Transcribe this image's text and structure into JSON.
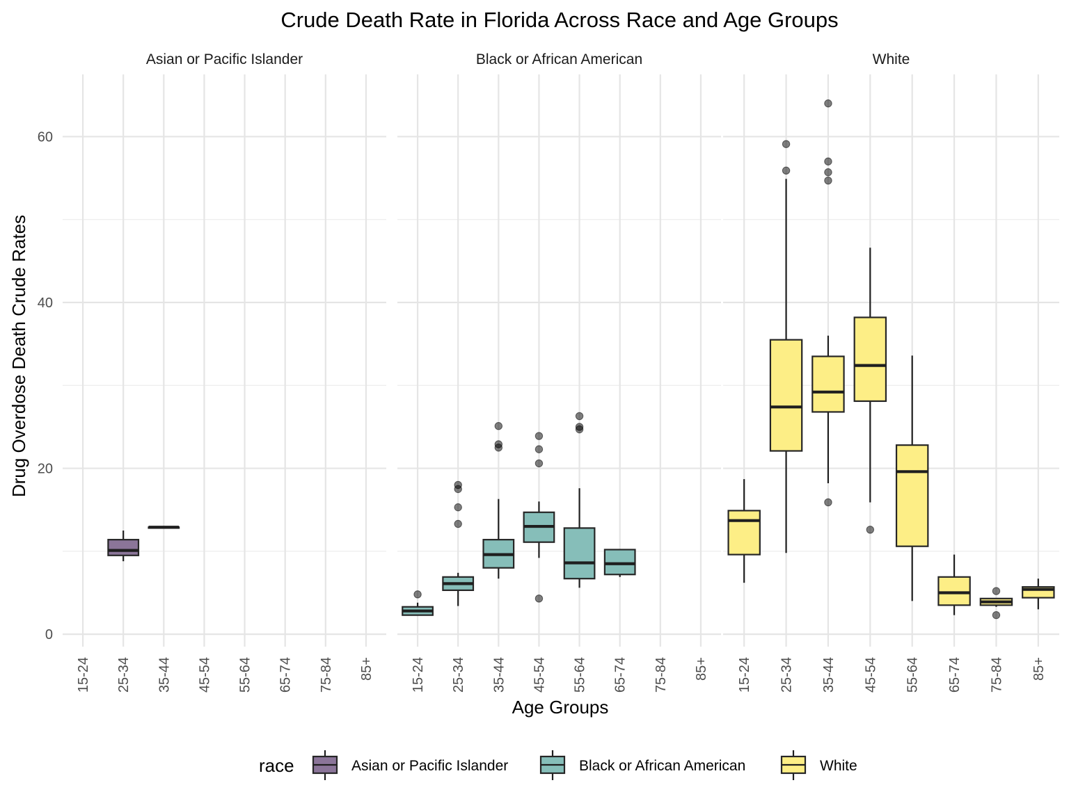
{
  "chart_data": {
    "type": "boxplot",
    "title": "Crude Death Rate in Florida Across Race and Age Groups",
    "xlabel": "Age Groups",
    "ylabel": "Drug Overdose Death Crude Rates",
    "ylim": [
      -1.5,
      67.5
    ],
    "yticks": [
      0,
      20,
      40,
      60
    ],
    "categories": [
      "15-24",
      "25-34",
      "35-44",
      "45-54",
      "55-64",
      "65-74",
      "75-84",
      "85+"
    ],
    "legend": {
      "title": "race",
      "position": "bottom",
      "items": [
        "Asian or Pacific Islander",
        "Black or African American",
        "White"
      ]
    },
    "colors": {
      "Asian or Pacific Islander": "#8b7599",
      "Black or African American": "#86beb9",
      "White": "#fdee86"
    },
    "panels": [
      {
        "name": "Asian or Pacific Islander",
        "boxes": [
          {
            "category": "25-34",
            "whisker_low": 8.8,
            "q1": 9.5,
            "median": 10.1,
            "q3": 11.4,
            "whisker_high": 12.5,
            "outliers": []
          },
          {
            "category": "35-44",
            "whisker_low": 12.8,
            "q1": 12.8,
            "median": 12.9,
            "q3": 12.9,
            "whisker_high": 12.9,
            "outliers": []
          }
        ]
      },
      {
        "name": "Black or African American",
        "boxes": [
          {
            "category": "15-24",
            "whisker_low": 2.3,
            "q1": 2.3,
            "median": 2.8,
            "q3": 3.3,
            "whisker_high": 3.8,
            "outliers": [
              4.8
            ]
          },
          {
            "category": "25-34",
            "whisker_low": 3.4,
            "q1": 5.3,
            "median": 6.1,
            "q3": 6.9,
            "whisker_high": 7.4,
            "outliers": [
              13.3,
              15.3,
              17.5,
              18.0
            ]
          },
          {
            "category": "35-44",
            "whisker_low": 6.7,
            "q1": 8.0,
            "median": 9.6,
            "q3": 11.4,
            "whisker_high": 16.3,
            "outliers": [
              22.5,
              22.9,
              25.1
            ]
          },
          {
            "category": "45-54",
            "whisker_low": 9.2,
            "q1": 11.1,
            "median": 13.0,
            "q3": 14.7,
            "whisker_high": 16.0,
            "outliers": [
              4.3,
              20.6,
              22.3,
              23.9
            ]
          },
          {
            "category": "55-64",
            "whisker_low": 5.6,
            "q1": 6.7,
            "median": 8.6,
            "q3": 12.8,
            "whisker_high": 17.6,
            "outliers": [
              24.7,
              25.0,
              26.3
            ]
          },
          {
            "category": "65-74",
            "whisker_low": 6.9,
            "q1": 7.2,
            "median": 8.5,
            "q3": 10.2,
            "whisker_high": 10.2,
            "outliers": []
          }
        ]
      },
      {
        "name": "White",
        "boxes": [
          {
            "category": "15-24",
            "whisker_low": 6.2,
            "q1": 9.6,
            "median": 13.7,
            "q3": 14.9,
            "whisker_high": 18.7,
            "outliers": []
          },
          {
            "category": "25-34",
            "whisker_low": 9.8,
            "q1": 22.1,
            "median": 27.4,
            "q3": 35.5,
            "whisker_high": 54.9,
            "outliers": [
              55.9,
              59.1
            ]
          },
          {
            "category": "35-44",
            "whisker_low": 18.2,
            "q1": 26.8,
            "median": 29.2,
            "q3": 33.5,
            "whisker_high": 36.0,
            "outliers": [
              15.9,
              54.7,
              55.7,
              57.0,
              64.0
            ]
          },
          {
            "category": "45-54",
            "whisker_low": 15.9,
            "q1": 28.1,
            "median": 32.4,
            "q3": 38.2,
            "whisker_high": 46.6,
            "outliers": [
              12.6
            ]
          },
          {
            "category": "55-64",
            "whisker_low": 4.0,
            "q1": 10.6,
            "median": 19.6,
            "q3": 22.8,
            "whisker_high": 33.6,
            "outliers": []
          },
          {
            "category": "65-74",
            "whisker_low": 2.3,
            "q1": 3.5,
            "median": 5.0,
            "q3": 6.9,
            "whisker_high": 9.6,
            "outliers": []
          },
          {
            "category": "75-84",
            "whisker_low": 3.3,
            "q1": 3.5,
            "median": 3.9,
            "q3": 4.3,
            "whisker_high": 4.3,
            "outliers": [
              2.3,
              5.2
            ]
          },
          {
            "category": "85+",
            "whisker_low": 3.0,
            "q1": 4.4,
            "median": 5.4,
            "q3": 5.7,
            "whisker_high": 6.7,
            "outliers": []
          }
        ]
      }
    ]
  }
}
